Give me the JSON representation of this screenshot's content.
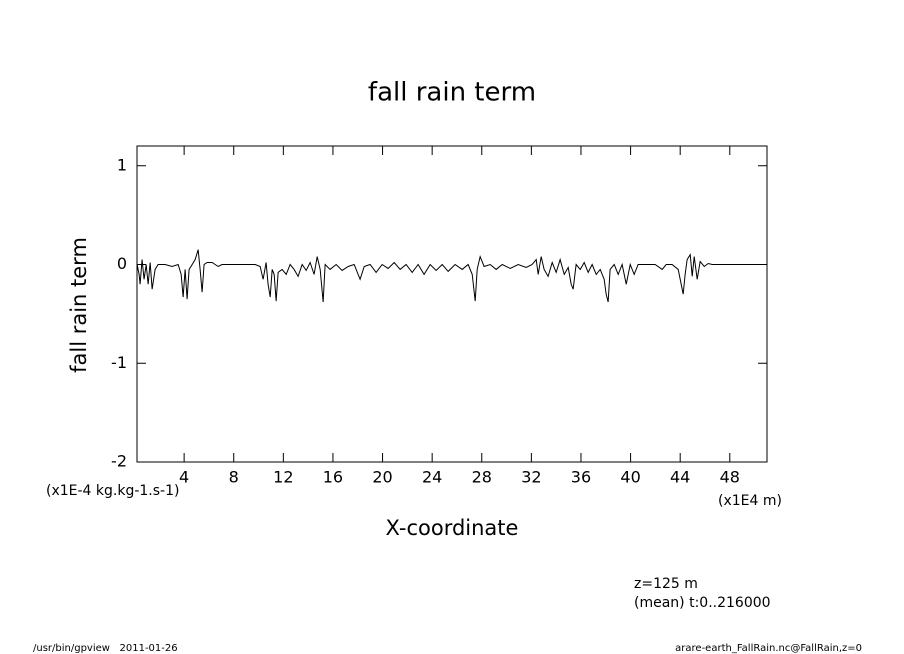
{
  "chart_data": {
    "type": "line",
    "title": "fall rain term",
    "x_label": "X-coordinate",
    "y_label": "fall rain term",
    "x_unit": "(x1E4 m)",
    "y_unit": "(x1E-4 kg.kg-1.s-1)",
    "annotations": [
      "z=125 m",
      "(mean) t:0..216000"
    ],
    "footer_left": "/usr/bin/gpview   2011-01-26",
    "footer_right": "arare-earth_FallRain.nc@FallRain,z=0",
    "xlim": [
      0.2,
      51.0
    ],
    "ylim": [
      -2,
      1.2
    ],
    "xticks": [
      4,
      8,
      12,
      16,
      20,
      24,
      28,
      32,
      36,
      40,
      44,
      48
    ],
    "yticks": [
      -2,
      -1,
      0,
      1
    ],
    "series": [
      {
        "color": "#000000",
        "x": [
          0.21,
          0.37,
          0.45,
          0.61,
          0.77,
          0.94,
          1.1,
          1.26,
          1.42,
          1.66,
          1.9,
          2.47,
          3.03,
          3.52,
          3.76,
          3.92,
          4.08,
          4.24,
          4.4,
          4.65,
          4.89,
          5.13,
          5.29,
          5.45,
          5.61,
          5.85,
          6.26,
          6.74,
          7.06,
          8.52,
          9.73,
          10.13,
          10.37,
          10.61,
          10.77,
          10.94,
          11.1,
          11.26,
          11.42,
          11.58,
          11.9,
          12.23,
          12.55,
          12.87,
          13.19,
          13.52,
          13.84,
          14.16,
          14.48,
          14.73,
          14.97,
          15.21,
          15.37,
          15.77,
          16.26,
          16.74,
          17.23,
          17.71,
          18.19,
          18.52,
          19.0,
          19.48,
          19.97,
          20.45,
          20.94,
          21.42,
          21.9,
          22.39,
          22.87,
          23.35,
          23.84,
          24.32,
          24.81,
          25.29,
          25.85,
          26.42,
          26.9,
          27.23,
          27.47,
          27.63,
          27.87,
          28.19,
          28.68,
          29.16,
          29.65,
          30.29,
          30.94,
          31.58,
          32.06,
          32.39,
          32.55,
          32.79,
          33.03,
          33.35,
          33.68,
          34.0,
          34.32,
          34.65,
          34.97,
          35.21,
          35.37,
          35.61,
          35.94,
          36.26,
          36.58,
          36.9,
          37.23,
          37.55,
          37.87,
          38.03,
          38.19,
          38.35,
          38.68,
          39.0,
          39.32,
          39.65,
          39.97,
          40.29,
          40.61,
          41.18,
          41.98,
          42.55,
          42.87,
          43.35,
          43.84,
          44.08,
          44.24,
          44.4,
          44.56,
          44.81,
          44.97,
          45.13,
          45.37,
          45.61,
          45.94,
          46.26,
          46.58,
          51.0
        ],
        "values": [
          0,
          -0.1,
          -0.2,
          0.05,
          -0.15,
          0,
          -0.2,
          0.02,
          -0.25,
          -0.05,
          0,
          0,
          -0.02,
          0,
          -0.1,
          -0.33,
          -0.05,
          -0.35,
          -0.05,
          0,
          0.05,
          0.15,
          -0.05,
          -0.28,
          0,
          0.02,
          0.02,
          -0.02,
          0,
          0,
          0,
          -0.02,
          -0.15,
          0.02,
          -0.2,
          -0.33,
          -0.05,
          -0.1,
          -0.37,
          -0.08,
          -0.05,
          -0.1,
          0,
          -0.05,
          -0.12,
          0,
          -0.06,
          0.02,
          -0.1,
          0.08,
          -0.05,
          -0.38,
          0,
          -0.05,
          0,
          -0.06,
          -0.02,
          0,
          -0.15,
          -0.02,
          0,
          -0.08,
          0,
          -0.04,
          0.02,
          -0.05,
          0,
          -0.08,
          0,
          -0.1,
          0,
          -0.06,
          0,
          -0.07,
          0,
          -0.05,
          0,
          -0.1,
          -0.37,
          -0.05,
          0.08,
          -0.02,
          0,
          -0.05,
          0,
          -0.04,
          0,
          -0.03,
          0,
          0.05,
          -0.1,
          0.08,
          -0.05,
          -0.12,
          0.02,
          -0.08,
          0.05,
          -0.1,
          -0.03,
          -0.2,
          -0.25,
          0,
          -0.05,
          0.02,
          -0.08,
          0,
          -0.1,
          -0.05,
          -0.15,
          -0.3,
          -0.38,
          -0.05,
          0,
          -0.1,
          0,
          -0.2,
          0,
          -0.1,
          0,
          0,
          0,
          -0.05,
          0,
          0,
          -0.05,
          -0.2,
          -0.3,
          -0.1,
          0.05,
          0.1,
          -0.12,
          0.08,
          -0.15,
          0.03,
          -0.02,
          0.01,
          0,
          0
        ]
      }
    ]
  }
}
